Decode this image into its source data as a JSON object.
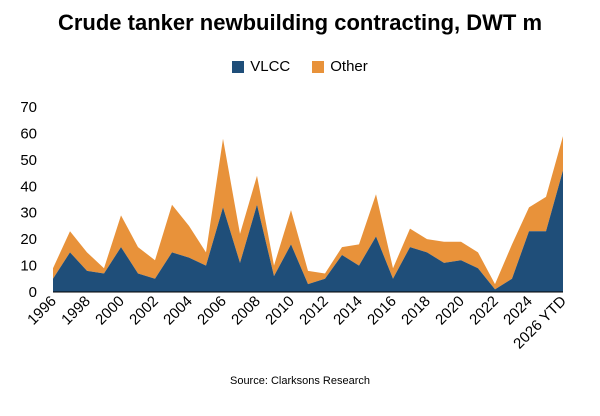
{
  "colors": {
    "vlcc": "#1f4e79",
    "other": "#e8923a"
  },
  "chart_data": {
    "type": "area",
    "stacked": true,
    "title": "Crude tanker newbuilding contracting, DWT m",
    "xlabel": "",
    "ylabel": "",
    "ylim": [
      0,
      70
    ],
    "yticks": [
      0,
      10,
      20,
      30,
      40,
      50,
      60,
      70
    ],
    "grid": false,
    "legend_position": "top-center",
    "x": [
      "1996",
      "1997",
      "1998",
      "1999",
      "2000",
      "2001",
      "2002",
      "2003",
      "2004",
      "2005",
      "2006",
      "2007",
      "2008",
      "2009",
      "2010",
      "2011",
      "2012",
      "2013",
      "2014",
      "2015",
      "2016",
      "2017",
      "2018",
      "2019",
      "2020",
      "2021",
      "2022",
      "2023",
      "2024",
      "2025",
      "2026 YTD"
    ],
    "x_tick_labels": [
      "1996",
      "1998",
      "2000",
      "2002",
      "2004",
      "2006",
      "2008",
      "2010",
      "2012",
      "2014",
      "2016",
      "2018",
      "2020",
      "2022",
      "2024",
      "2026 YTD"
    ],
    "series": [
      {
        "name": "VLCC",
        "values": [
          5,
          15,
          8,
          7,
          17,
          7,
          5,
          15,
          13,
          10,
          32,
          11,
          33,
          6,
          18,
          3,
          5,
          14,
          10,
          21,
          5,
          17,
          15,
          11,
          12,
          9,
          1,
          5,
          23,
          23,
          46
        ]
      },
      {
        "name": "Other",
        "values": [
          4,
          8,
          7,
          2,
          12,
          10,
          7,
          18,
          12,
          5,
          26,
          11,
          11,
          4,
          13,
          5,
          2,
          3,
          8,
          16,
          4,
          7,
          5,
          8,
          7,
          6,
          2,
          13,
          9,
          13,
          13
        ]
      }
    ],
    "source": "Source: Clarksons Research"
  }
}
